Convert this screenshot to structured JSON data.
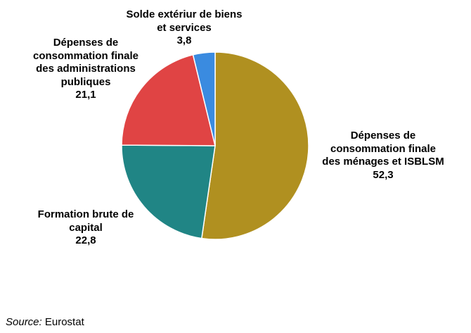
{
  "chart_data": {
    "type": "pie",
    "start": "top",
    "direction": "clockwise",
    "slices": [
      {
        "label_lines": [
          "Dépenses de",
          "consommation finale",
          "des ménages et ISBLSM"
        ],
        "value": 52.3,
        "value_label": "52,3",
        "color": "#B09020"
      },
      {
        "label_lines": [
          "Formation brute de",
          "capital"
        ],
        "value": 22.8,
        "value_label": "22,8",
        "color": "#208585"
      },
      {
        "label_lines": [
          "Dépenses de",
          "consommation finale",
          "des administrations",
          "publiques"
        ],
        "value": 21.1,
        "value_label": "21,1",
        "color": "#E04444"
      },
      {
        "label_lines": [
          "Solde extériur de biens",
          "et services"
        ],
        "value": 3.8,
        "value_label": "3,8",
        "color": "#3A8BE0"
      }
    ]
  },
  "source": {
    "prefix": "Source:",
    "text": " Eurostat"
  }
}
